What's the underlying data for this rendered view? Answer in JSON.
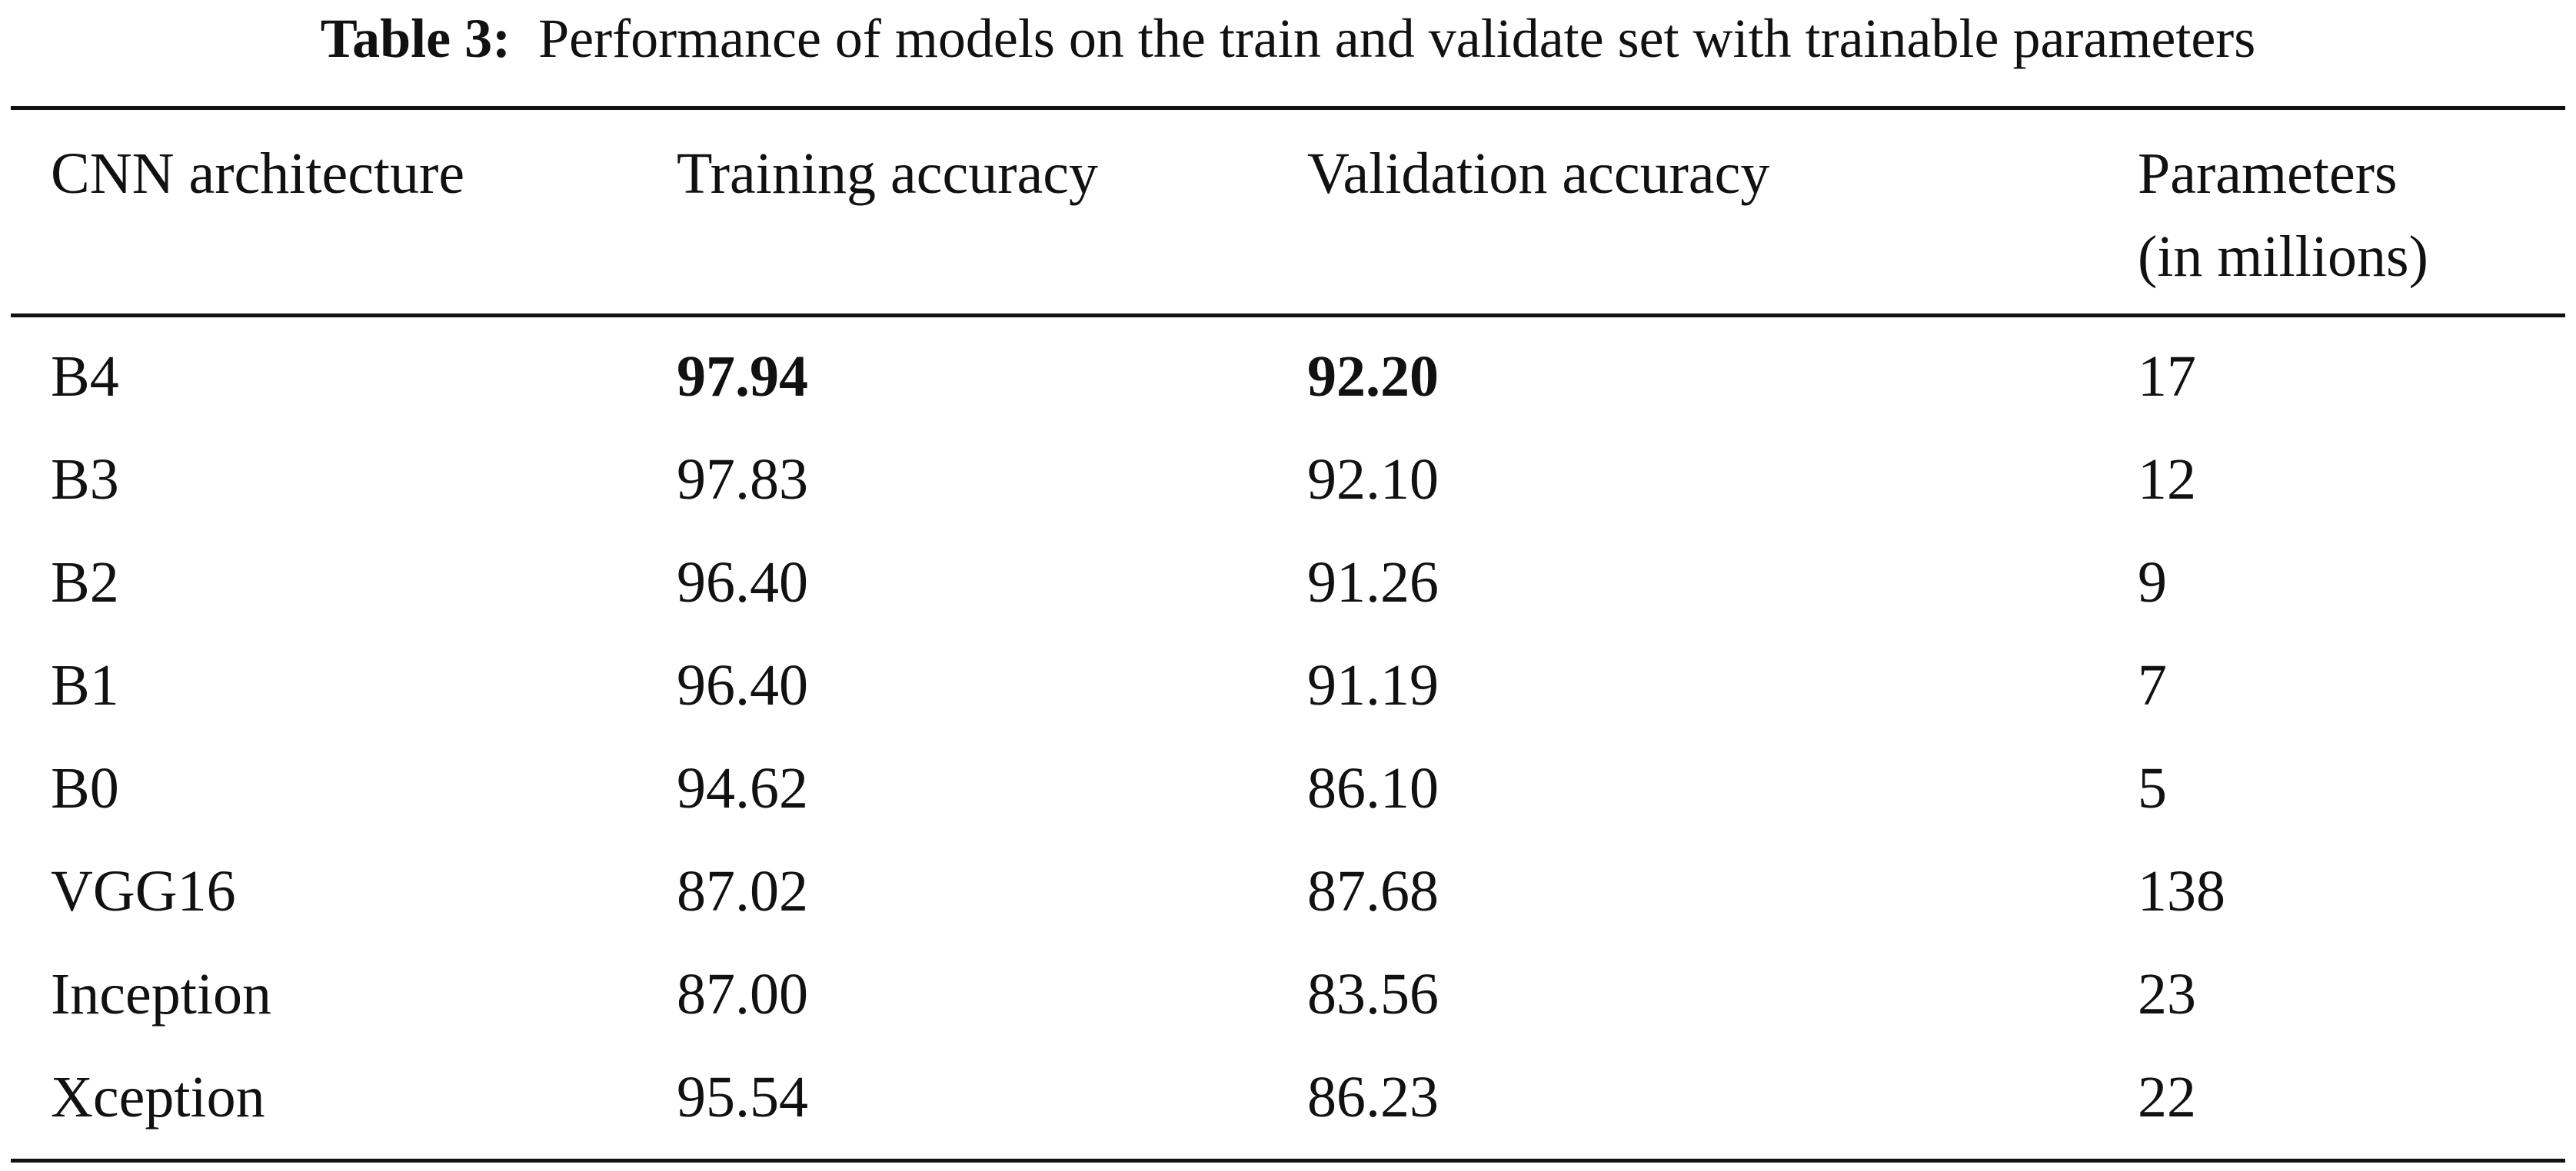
{
  "caption": {
    "label": "Table 3:",
    "text": "Performance of models on the train and validate set with trainable parameters"
  },
  "table": {
    "headers": [
      "CNN architecture",
      "Training accuracy",
      "Validation accuracy",
      "Parameters",
      "(in millions)"
    ],
    "rows": [
      {
        "arch": "B4",
        "train": "97.94",
        "val": "92.20",
        "params": "17"
      },
      {
        "arch": "B3",
        "train": "97.83",
        "val": "92.10",
        "params": "12"
      },
      {
        "arch": "B2",
        "train": "96.40",
        "val": "91.26",
        "params": "9"
      },
      {
        "arch": "B1",
        "train": "96.40",
        "val": "91.19",
        "params": "7"
      },
      {
        "arch": "B0",
        "train": "94.62",
        "val": "86.10",
        "params": "5"
      },
      {
        "arch": "VGG16",
        "train": "87.02",
        "val": "87.68",
        "params": "138"
      },
      {
        "arch": "Inception",
        "train": "87.00",
        "val": "83.56",
        "params": "23"
      },
      {
        "arch": "Xception",
        "train": "95.54",
        "val": "86.23",
        "params": "22"
      }
    ]
  }
}
